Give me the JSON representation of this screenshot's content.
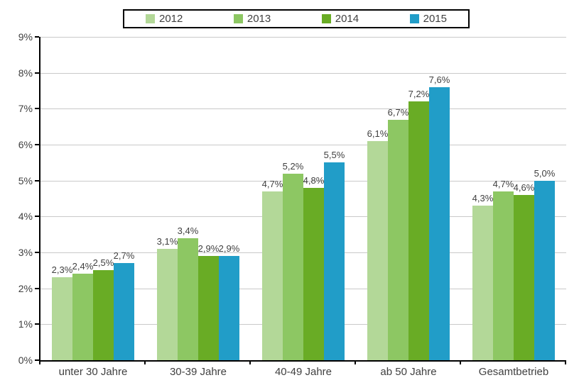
{
  "chart": {
    "background_color": "#ffffff",
    "axis_color": "#000000",
    "gridline_color": "#c9c9c9",
    "text_color": "#404040"
  },
  "chart_data": {
    "type": "bar",
    "title": "",
    "categories": [
      "unter 30 Jahre",
      "30-39 Jahre",
      "40-49 Jahre",
      "ab 50 Jahre",
      "Gesamtbetrieb"
    ],
    "series": [
      {
        "name": "2012",
        "color": "#b3d898",
        "values": [
          2.3,
          3.1,
          4.7,
          6.1,
          4.3
        ],
        "labels": [
          "2,3%",
          "3,1%",
          "4,7%",
          "6,1%",
          "4,3%"
        ]
      },
      {
        "name": "2013",
        "color": "#8dc763",
        "values": [
          2.4,
          3.4,
          5.2,
          6.7,
          4.7
        ],
        "labels": [
          "2,4%",
          "3,4%",
          "5,2%",
          "6,7%",
          "4,7%"
        ]
      },
      {
        "name": "2014",
        "color": "#69ac25",
        "values": [
          2.5,
          2.9,
          4.8,
          7.2,
          4.6
        ],
        "labels": [
          "2,5%",
          "2,9%",
          "4,8%",
          "7,2%",
          "4,6%"
        ]
      },
      {
        "name": "2015",
        "color": "#219dc8",
        "values": [
          2.7,
          2.9,
          5.5,
          7.6,
          5.0
        ],
        "labels": [
          "2,7%",
          "2,9%",
          "5,5%",
          "7,6%",
          "5,0%"
        ]
      }
    ],
    "y_ticks": [
      "0%",
      "1%",
      "2%",
      "3%",
      "4%",
      "5%",
      "6%",
      "7%",
      "8%",
      "9%"
    ],
    "ylim": [
      0,
      9
    ],
    "grid": true,
    "data_labels": true,
    "legend_position": "top",
    "xlabel": "",
    "ylabel": ""
  }
}
